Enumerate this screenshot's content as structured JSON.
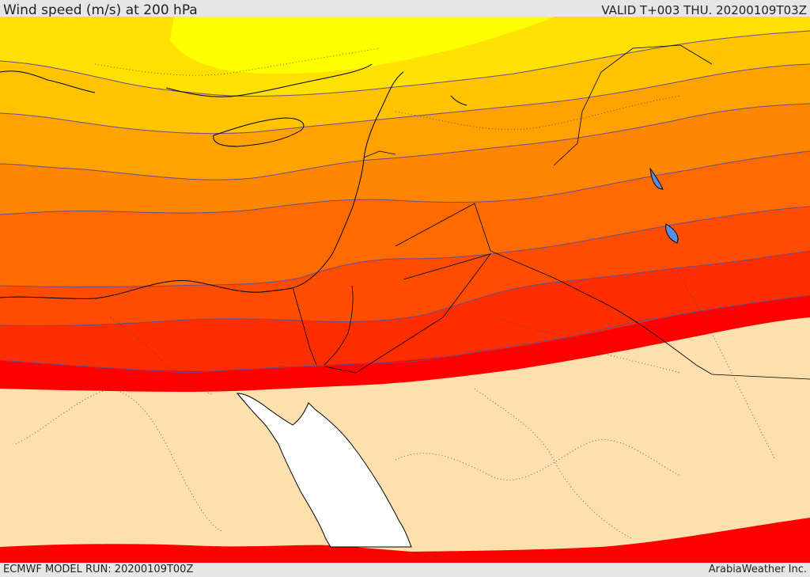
{
  "header": {
    "title": "Wind speed (m/s) at 200 hPa",
    "valid": "VALID T+003 THU. 20200109T03Z"
  },
  "footer": {
    "model_run": "ECMWF MODEL RUN: 20200109T00Z",
    "credit": "ArabiaWeather Inc."
  },
  "map": {
    "variable": "wind speed",
    "units": "m/s",
    "level_hpa": 200,
    "colors": {
      "low": "#fde0ae",
      "band_1": "#ffff00",
      "band_2": "#ffe100",
      "band_3": "#ffc300",
      "band_4": "#ffa200",
      "band_5": "#ff8600",
      "band_6": "#ff6a00",
      "band_7": "#ff4d00",
      "band_8": "#ff2d00",
      "band_9": "#ff0000",
      "water": "#ffffff",
      "contour": "#6a4c8a",
      "border": "#000000"
    }
  }
}
